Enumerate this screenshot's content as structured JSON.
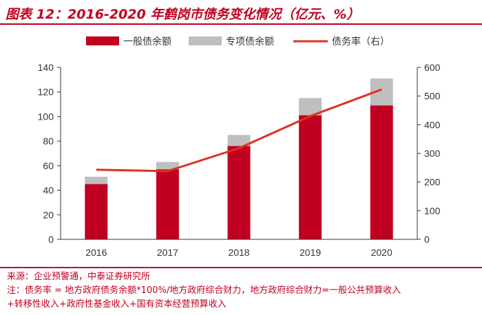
{
  "figure": {
    "title": "图表 12：2016-2020 年鹤岗市债务变化情况（亿元、%）",
    "source": "来源：企业预警通，中泰证券研究所",
    "note_line1": "注：债务率 = 地方政府债务余额*100%/地方政府综合财力，地方政府综合财力=一般公共预算收入",
    "note_line2": "+转移性收入+政府性基金收入+国有资本经营预算收入"
  },
  "colors": {
    "general_debt": "#c00020",
    "special_debt": "#bfbfbf",
    "debt_ratio": "#e0301e",
    "accent": "#c00020"
  },
  "chart_data": {
    "type": "bar",
    "stacked": true,
    "categories": [
      "2016",
      "2017",
      "2018",
      "2019",
      "2020"
    ],
    "series": [
      {
        "name": "一般债余额",
        "axis": "left",
        "values": [
          45,
          57,
          76,
          101,
          109
        ]
      },
      {
        "name": "专项债余额",
        "axis": "left",
        "values": [
          6,
          6,
          9,
          14,
          22
        ]
      },
      {
        "name": "债务率（右）",
        "type": "line",
        "axis": "right",
        "values": [
          243,
          238,
          318,
          430,
          523
        ]
      }
    ],
    "ylim_left": [
      0,
      140
    ],
    "yticks_left": [
      0,
      20,
      40,
      60,
      80,
      100,
      120,
      140
    ],
    "ylim_right": [
      0,
      600
    ],
    "yticks_right": [
      0,
      100,
      200,
      300,
      400,
      500,
      600
    ],
    "legend_position": "top",
    "grid": false
  }
}
